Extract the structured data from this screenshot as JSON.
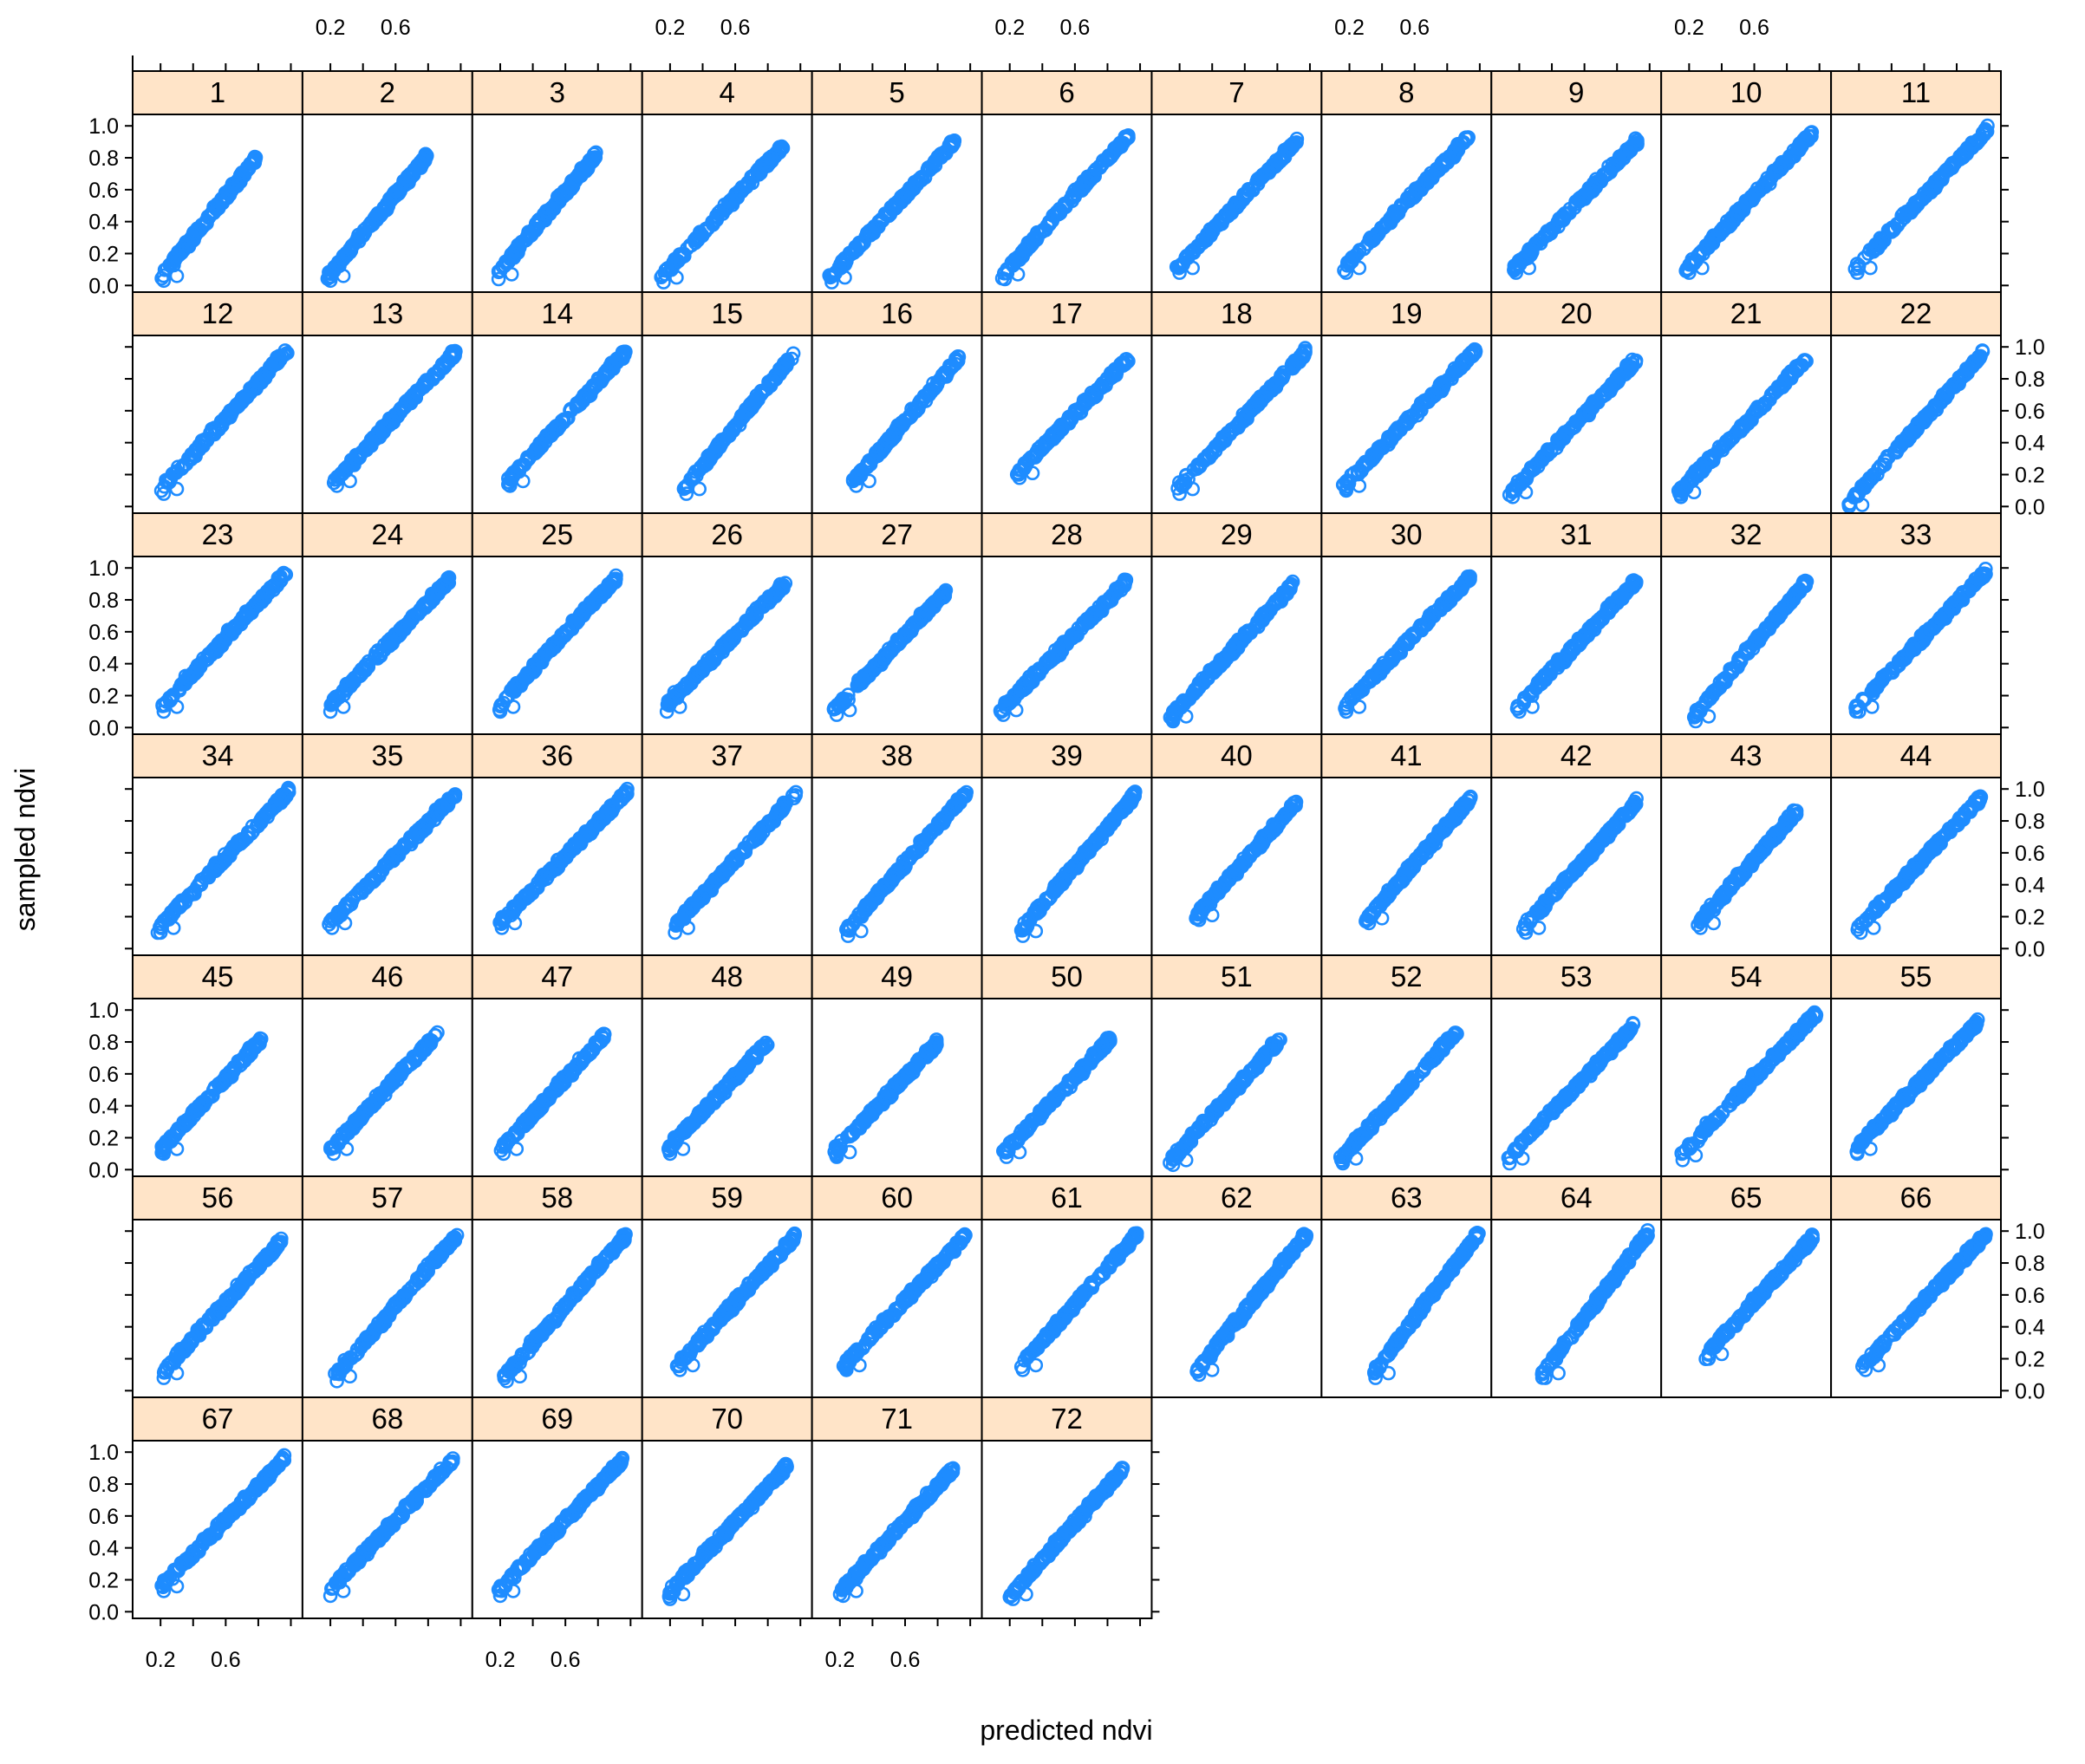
{
  "chart_data": {
    "type": "scatter",
    "layout": "lattice",
    "columns": 11,
    "rows": 7,
    "xlabel": "predicted ndvi",
    "ylabel": "sampled ndvi",
    "xlim": [
      0.05,
      1.05
    ],
    "ylim": [
      -0.02,
      1.05
    ],
    "x_tick_labels": [
      "0.2",
      "0.6"
    ],
    "y_tick_labels": [
      "0.0",
      "0.2",
      "0.4",
      "0.6",
      "0.8",
      "1.0"
    ],
    "panels": [
      {
        "label": "1",
        "x_range": [
          0.2,
          0.79
        ],
        "y_range": [
          0.05,
          0.8
        ]
      },
      {
        "label": "2",
        "x_range": [
          0.18,
          0.8
        ],
        "y_range": [
          0.05,
          0.82
        ]
      },
      {
        "label": "3",
        "x_range": [
          0.17,
          0.79
        ],
        "y_range": [
          0.06,
          0.82
        ]
      },
      {
        "label": "4",
        "x_range": [
          0.14,
          0.9
        ],
        "y_range": [
          0.04,
          0.88
        ]
      },
      {
        "label": "5",
        "x_range": [
          0.13,
          0.92
        ],
        "y_range": [
          0.04,
          0.92
        ]
      },
      {
        "label": "6",
        "x_range": [
          0.15,
          0.93
        ],
        "y_range": [
          0.06,
          0.94
        ]
      },
      {
        "label": "7",
        "x_range": [
          0.18,
          0.92
        ],
        "y_range": [
          0.1,
          0.91
        ]
      },
      {
        "label": "8",
        "x_range": [
          0.16,
          0.94
        ],
        "y_range": [
          0.1,
          0.94
        ]
      },
      {
        "label": "9",
        "x_range": [
          0.16,
          0.93
        ],
        "y_range": [
          0.1,
          0.91
        ]
      },
      {
        "label": "10",
        "x_range": [
          0.18,
          0.96
        ],
        "y_range": [
          0.1,
          0.96
        ]
      },
      {
        "label": "11",
        "x_range": [
          0.17,
          0.99
        ],
        "y_range": [
          0.1,
          0.98
        ]
      },
      {
        "label": "12",
        "x_range": [
          0.2,
          0.98
        ],
        "y_range": [
          0.1,
          0.98
        ]
      },
      {
        "label": "13",
        "x_range": [
          0.22,
          0.97
        ],
        "y_range": [
          0.15,
          0.97
        ]
      },
      {
        "label": "14",
        "x_range": [
          0.24,
          0.97
        ],
        "y_range": [
          0.15,
          0.97
        ]
      },
      {
        "label": "15",
        "x_range": [
          0.28,
          0.96
        ],
        "y_range": [
          0.1,
          0.96
        ]
      },
      {
        "label": "16",
        "x_range": [
          0.28,
          0.93
        ],
        "y_range": [
          0.15,
          0.93
        ]
      },
      {
        "label": "17",
        "x_range": [
          0.24,
          0.93
        ],
        "y_range": [
          0.2,
          0.93
        ]
      },
      {
        "label": "18",
        "x_range": [
          0.18,
          0.98
        ],
        "y_range": [
          0.1,
          0.98
        ]
      },
      {
        "label": "19",
        "x_range": [
          0.16,
          0.98
        ],
        "y_range": [
          0.12,
          0.98
        ]
      },
      {
        "label": "20",
        "x_range": [
          0.14,
          0.92
        ],
        "y_range": [
          0.08,
          0.92
        ]
      },
      {
        "label": "21",
        "x_range": [
          0.13,
          0.92
        ],
        "y_range": [
          0.08,
          0.92
        ]
      },
      {
        "label": "22",
        "x_range": [
          0.12,
          0.96
        ],
        "y_range": [
          0.0,
          0.96
        ]
      },
      {
        "label": "23",
        "x_range": [
          0.2,
          0.97
        ],
        "y_range": [
          0.12,
          0.97
        ]
      },
      {
        "label": "24",
        "x_range": [
          0.18,
          0.93
        ],
        "y_range": [
          0.12,
          0.93
        ]
      },
      {
        "label": "25",
        "x_range": [
          0.18,
          0.92
        ],
        "y_range": [
          0.12,
          0.95
        ]
      },
      {
        "label": "26",
        "x_range": [
          0.16,
          0.91
        ],
        "y_range": [
          0.12,
          0.91
        ]
      },
      {
        "label": "27",
        "x_range": [
          0.16,
          0.85
        ],
        "y_range": [
          0.1,
          0.85
        ]
      },
      {
        "label": "28",
        "x_range": [
          0.14,
          0.92
        ],
        "y_range": [
          0.1,
          0.92
        ]
      },
      {
        "label": "29",
        "x_range": [
          0.14,
          0.9
        ],
        "y_range": [
          0.06,
          0.9
        ]
      },
      {
        "label": "30",
        "x_range": [
          0.16,
          0.94
        ],
        "y_range": [
          0.12,
          0.94
        ]
      },
      {
        "label": "31",
        "x_range": [
          0.18,
          0.92
        ],
        "y_range": [
          0.12,
          0.92
        ]
      },
      {
        "label": "32",
        "x_range": [
          0.22,
          0.93
        ],
        "y_range": [
          0.06,
          0.93
        ]
      },
      {
        "label": "33",
        "x_range": [
          0.18,
          0.98
        ],
        "y_range": [
          0.12,
          0.98
        ]
      },
      {
        "label": "34",
        "x_range": [
          0.18,
          0.99
        ],
        "y_range": [
          0.12,
          0.99
        ]
      },
      {
        "label": "35",
        "x_range": [
          0.19,
          0.97
        ],
        "y_range": [
          0.15,
          0.97
        ]
      },
      {
        "label": "36",
        "x_range": [
          0.19,
          0.98
        ],
        "y_range": [
          0.15,
          0.98
        ]
      },
      {
        "label": "37",
        "x_range": [
          0.21,
          0.98
        ],
        "y_range": [
          0.12,
          0.98
        ]
      },
      {
        "label": "38",
        "x_range": [
          0.23,
          0.98
        ],
        "y_range": [
          0.1,
          0.98
        ]
      },
      {
        "label": "39",
        "x_range": [
          0.26,
          0.97
        ],
        "y_range": [
          0.1,
          0.97
        ]
      },
      {
        "label": "40",
        "x_range": [
          0.3,
          0.92
        ],
        "y_range": [
          0.2,
          0.92
        ]
      },
      {
        "label": "41",
        "x_range": [
          0.3,
          0.95
        ],
        "y_range": [
          0.18,
          0.95
        ]
      },
      {
        "label": "42",
        "x_range": [
          0.22,
          0.92
        ],
        "y_range": [
          0.12,
          0.92
        ]
      },
      {
        "label": "43",
        "x_range": [
          0.25,
          0.86
        ],
        "y_range": [
          0.15,
          0.86
        ]
      },
      {
        "label": "44",
        "x_range": [
          0.19,
          0.95
        ],
        "y_range": [
          0.12,
          0.95
        ]
      },
      {
        "label": "45",
        "x_range": [
          0.2,
          0.82
        ],
        "y_range": [
          0.12,
          0.82
        ]
      },
      {
        "label": "46",
        "x_range": [
          0.2,
          0.86
        ],
        "y_range": [
          0.12,
          0.86
        ]
      },
      {
        "label": "47",
        "x_range": [
          0.2,
          0.84
        ],
        "y_range": [
          0.12,
          0.84
        ]
      },
      {
        "label": "48",
        "x_range": [
          0.18,
          0.8
        ],
        "y_range": [
          0.12,
          0.8
        ]
      },
      {
        "label": "49",
        "x_range": [
          0.16,
          0.8
        ],
        "y_range": [
          0.1,
          0.8
        ]
      },
      {
        "label": "50",
        "x_range": [
          0.16,
          0.82
        ],
        "y_range": [
          0.1,
          0.82
        ]
      },
      {
        "label": "51",
        "x_range": [
          0.14,
          0.82
        ],
        "y_range": [
          0.05,
          0.82
        ]
      },
      {
        "label": "52",
        "x_range": [
          0.14,
          0.86
        ],
        "y_range": [
          0.06,
          0.86
        ]
      },
      {
        "label": "53",
        "x_range": [
          0.12,
          0.9
        ],
        "y_range": [
          0.06,
          0.9
        ]
      },
      {
        "label": "54",
        "x_range": [
          0.14,
          0.98
        ],
        "y_range": [
          0.08,
          0.98
        ]
      },
      {
        "label": "55",
        "x_range": [
          0.17,
          0.93
        ],
        "y_range": [
          0.12,
          0.93
        ]
      },
      {
        "label": "56",
        "x_range": [
          0.2,
          0.95
        ],
        "y_range": [
          0.1,
          0.95
        ]
      },
      {
        "label": "57",
        "x_range": [
          0.22,
          0.98
        ],
        "y_range": [
          0.08,
          0.98
        ]
      },
      {
        "label": "58",
        "x_range": [
          0.22,
          0.97
        ],
        "y_range": [
          0.08,
          0.97
        ]
      },
      {
        "label": "59",
        "x_range": [
          0.24,
          0.97
        ],
        "y_range": [
          0.15,
          0.97
        ]
      },
      {
        "label": "60",
        "x_range": [
          0.22,
          0.98
        ],
        "y_range": [
          0.15,
          0.98
        ]
      },
      {
        "label": "61",
        "x_range": [
          0.26,
          0.98
        ],
        "y_range": [
          0.15,
          0.98
        ]
      },
      {
        "label": "62",
        "x_range": [
          0.3,
          0.98
        ],
        "y_range": [
          0.12,
          0.98
        ]
      },
      {
        "label": "63",
        "x_range": [
          0.34,
          1.0
        ],
        "y_range": [
          0.1,
          1.0
        ]
      },
      {
        "label": "64",
        "x_range": [
          0.34,
          0.99
        ],
        "y_range": [
          0.1,
          0.99
        ]
      },
      {
        "label": "65",
        "x_range": [
          0.3,
          0.96
        ],
        "y_range": [
          0.22,
          0.96
        ]
      },
      {
        "label": "66",
        "x_range": [
          0.22,
          0.98
        ],
        "y_range": [
          0.15,
          0.98
        ]
      },
      {
        "label": "67",
        "x_range": [
          0.2,
          0.96
        ],
        "y_range": [
          0.15,
          0.96
        ]
      },
      {
        "label": "68",
        "x_range": [
          0.18,
          0.96
        ],
        "y_range": [
          0.12,
          0.96
        ]
      },
      {
        "label": "69",
        "x_range": [
          0.18,
          0.95
        ],
        "y_range": [
          0.12,
          0.95
        ]
      },
      {
        "label": "70",
        "x_range": [
          0.18,
          0.92
        ],
        "y_range": [
          0.1,
          0.92
        ]
      },
      {
        "label": "71",
        "x_range": [
          0.2,
          0.9
        ],
        "y_range": [
          0.12,
          0.9
        ]
      },
      {
        "label": "72",
        "x_range": [
          0.2,
          0.9
        ],
        "y_range": [
          0.1,
          0.9
        ]
      }
    ],
    "point_color": "#1E8CFF",
    "strip_color": "#FFE4C8",
    "grid": false
  }
}
